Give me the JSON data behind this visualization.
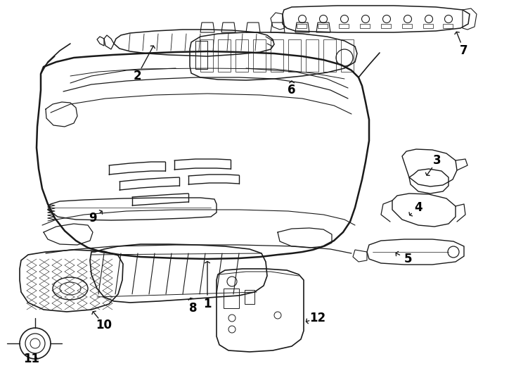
{
  "background_color": "#ffffff",
  "line_color": "#1a1a1a",
  "fig_width": 7.34,
  "fig_height": 5.4,
  "dpi": 100
}
